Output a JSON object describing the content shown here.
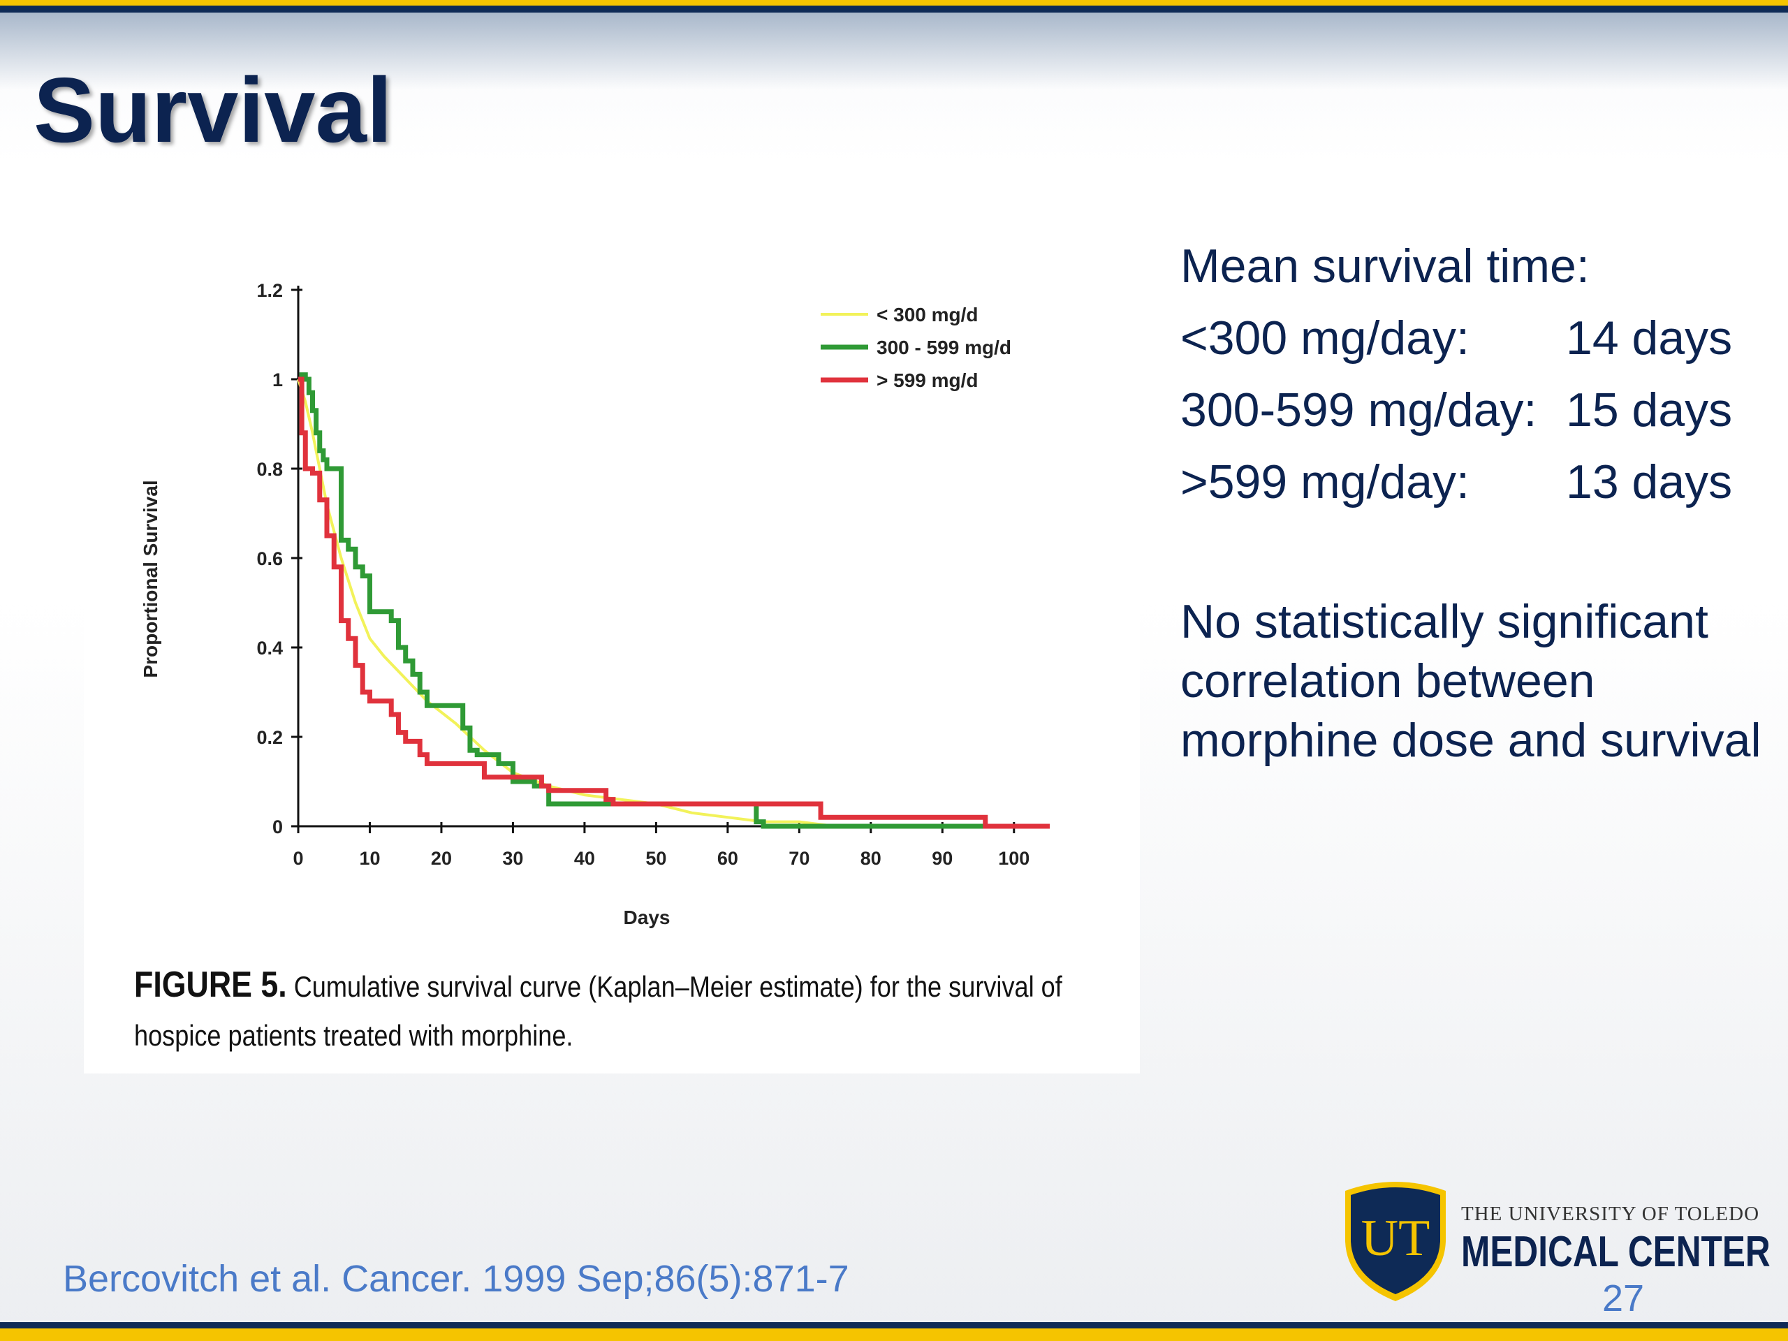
{
  "slide": {
    "title": "Survival",
    "page_number": "27",
    "citation": "Bercovitch et al.  Cancer.  1999 Sep;86(5):871-7"
  },
  "caption": {
    "label": "FIGURE 5.",
    "text": " Cumulative survival curve (Kaplan–Meier estimate) for the survival of hospice patients treated with morphine."
  },
  "stats": {
    "heading": "Mean survival time:",
    "rows": [
      {
        "label": "<300 mg/day:",
        "value": "14 days"
      },
      {
        "label": "300-599 mg/day:",
        "value": "15 days"
      },
      {
        "label": ">599 mg/day:",
        "value": "13 days"
      }
    ]
  },
  "conclusion": "No statistically significant correlation between morphine dose and survival",
  "logo": {
    "monogram": "UT",
    "line1": "THE UNIVERSITY OF TOLEDO",
    "line2": "MEDICAL CENTER"
  },
  "colors": {
    "navy": "#0c2350",
    "gold": "#f5c400",
    "citation_blue": "#4a7ac8",
    "series_lt300": "#f2f25a",
    "series_300_599": "#2f9a35",
    "series_gt599": "#e0323c"
  },
  "chart_data": {
    "type": "line",
    "step": true,
    "title": "",
    "xlabel": "Days",
    "ylabel": "Proportional Survival",
    "xlim": [
      0,
      105
    ],
    "ylim": [
      0,
      1.2
    ],
    "xticks": [
      0,
      10,
      20,
      30,
      40,
      50,
      60,
      70,
      80,
      90,
      100
    ],
    "yticks": [
      0,
      0.2,
      0.4,
      0.6,
      0.8,
      1,
      1.2
    ],
    "ytick_labels": [
      "0",
      "0.2",
      "0.4",
      "0.6",
      "0.8",
      "1",
      "1.2"
    ],
    "legend_position": "top-right",
    "series": [
      {
        "name": "< 300 mg/d",
        "color": "#f2f25a",
        "step": false,
        "x": [
          0,
          1,
          2,
          3,
          4,
          6,
          8,
          10,
          12,
          15,
          18,
          22,
          26,
          30,
          35,
          40,
          45,
          50,
          55,
          60,
          65,
          70,
          75,
          80,
          90,
          97
        ],
        "y": [
          1,
          0.95,
          0.88,
          0.8,
          0.72,
          0.6,
          0.5,
          0.42,
          0.38,
          0.33,
          0.28,
          0.23,
          0.17,
          0.12,
          0.09,
          0.07,
          0.06,
          0.05,
          0.03,
          0.02,
          0.01,
          0.01,
          0.0,
          0.0,
          0.0,
          0.0
        ]
      },
      {
        "name": "300 - 599 mg/d",
        "color": "#2f9a35",
        "step": true,
        "x": [
          0,
          0.5,
          1,
          1.5,
          2,
          2.5,
          3,
          3.5,
          4,
          5,
          6,
          7,
          8,
          9,
          10,
          11,
          13,
          14,
          15,
          16,
          17,
          18,
          19,
          21,
          23,
          24,
          25,
          26,
          28,
          30,
          32,
          33,
          35,
          40,
          45,
          50,
          55,
          60,
          63,
          64,
          65,
          75,
          98
        ],
        "y": [
          1,
          1.01,
          1,
          0.97,
          0.93,
          0.88,
          0.84,
          0.82,
          0.8,
          0.8,
          0.64,
          0.62,
          0.58,
          0.56,
          0.48,
          0.48,
          0.46,
          0.4,
          0.37,
          0.34,
          0.3,
          0.27,
          0.27,
          0.27,
          0.22,
          0.17,
          0.16,
          0.16,
          0.14,
          0.1,
          0.1,
          0.09,
          0.05,
          0.05,
          0.05,
          0.05,
          0.05,
          0.05,
          0.05,
          0.01,
          0.0,
          0.0,
          0.0
        ]
      },
      {
        "name": "> 599 mg/d",
        "color": "#e0323c",
        "step": true,
        "x": [
          0,
          0.5,
          1,
          2,
          3,
          4,
          5,
          6,
          7,
          8,
          9,
          10,
          13,
          14,
          15,
          16,
          17,
          18,
          19,
          25,
          26,
          29,
          30,
          34,
          35,
          40,
          43,
          44,
          50,
          60,
          73,
          74,
          80,
          90,
          96,
          97,
          105
        ],
        "y": [
          1,
          0.88,
          0.8,
          0.79,
          0.73,
          0.65,
          0.58,
          0.46,
          0.42,
          0.36,
          0.3,
          0.28,
          0.25,
          0.21,
          0.19,
          0.19,
          0.16,
          0.14,
          0.14,
          0.14,
          0.11,
          0.11,
          0.11,
          0.09,
          0.08,
          0.08,
          0.06,
          0.05,
          0.05,
          0.05,
          0.02,
          0.02,
          0.02,
          0.02,
          0.0,
          0.0,
          0.0
        ]
      }
    ]
  }
}
